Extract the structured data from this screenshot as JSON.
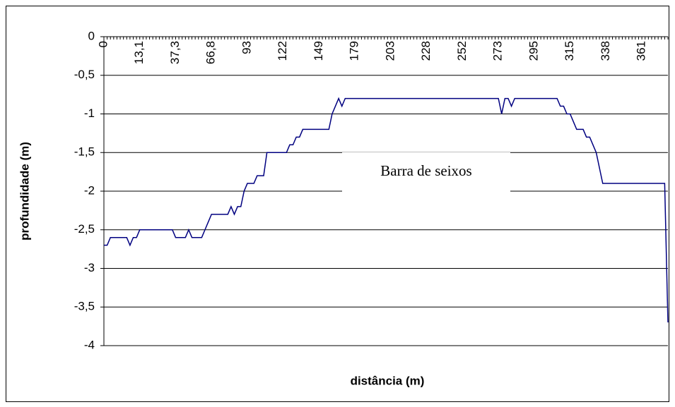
{
  "chart_data": {
    "type": "line",
    "x_label": "distância (m)",
    "y_label": "profundidade (m)",
    "annotations": [
      "Barra de seixos"
    ],
    "categories": [
      "0",
      null,
      null,
      null,
      null,
      null,
      null,
      null,
      null,
      null,
      null,
      "13,1",
      null,
      null,
      null,
      null,
      null,
      null,
      null,
      null,
      null,
      null,
      "37,3",
      null,
      null,
      null,
      null,
      null,
      null,
      null,
      null,
      null,
      null,
      "66,8",
      null,
      null,
      null,
      null,
      null,
      null,
      null,
      null,
      null,
      null,
      "93",
      null,
      null,
      null,
      null,
      null,
      null,
      null,
      null,
      null,
      null,
      "122",
      null,
      null,
      null,
      null,
      null,
      null,
      null,
      null,
      null,
      null,
      "149",
      null,
      null,
      null,
      null,
      null,
      null,
      null,
      null,
      null,
      null,
      "179",
      null,
      null,
      null,
      null,
      null,
      null,
      null,
      null,
      null,
      null,
      "203",
      null,
      null,
      null,
      null,
      null,
      null,
      null,
      null,
      null,
      null,
      "228",
      null,
      null,
      null,
      null,
      null,
      null,
      null,
      null,
      null,
      null,
      "252",
      null,
      null,
      null,
      null,
      null,
      null,
      null,
      null,
      null,
      null,
      "273",
      null,
      null,
      null,
      null,
      null,
      null,
      null,
      null,
      null,
      null,
      "295",
      null,
      null,
      null,
      null,
      null,
      null,
      null,
      null,
      null,
      null,
      "315",
      null,
      null,
      null,
      null,
      null,
      null,
      null,
      null,
      null,
      null,
      "338",
      null,
      null,
      null,
      null,
      null,
      null,
      null,
      null,
      null,
      null,
      "361",
      null,
      null,
      null,
      null,
      null,
      null,
      null,
      null
    ],
    "values": [
      -2.7,
      -2.7,
      -2.6,
      -2.6,
      -2.6,
      -2.6,
      -2.6,
      -2.6,
      -2.7,
      -2.6,
      -2.6,
      -2.5,
      -2.5,
      -2.5,
      -2.5,
      -2.5,
      -2.5,
      -2.5,
      -2.5,
      -2.5,
      -2.5,
      -2.5,
      -2.6,
      -2.6,
      -2.6,
      -2.6,
      -2.5,
      -2.6,
      -2.6,
      -2.6,
      -2.6,
      -2.5,
      -2.4,
      -2.3,
      -2.3,
      -2.3,
      -2.3,
      -2.3,
      -2.3,
      -2.2,
      -2.3,
      -2.2,
      -2.2,
      -2.0,
      -1.9,
      -1.9,
      -1.9,
      -1.8,
      -1.8,
      -1.8,
      -1.5,
      -1.5,
      -1.5,
      -1.5,
      -1.5,
      -1.5,
      -1.5,
      -1.4,
      -1.4,
      -1.3,
      -1.3,
      -1.2,
      -1.2,
      -1.2,
      -1.2,
      -1.2,
      -1.2,
      -1.2,
      -1.2,
      -1.2,
      -1.0,
      -0.9,
      -0.8,
      -0.9,
      -0.8,
      -0.8,
      -0.8,
      -0.8,
      -0.8,
      -0.8,
      -0.8,
      -0.8,
      -0.8,
      -0.8,
      -0.8,
      -0.8,
      -0.8,
      -0.8,
      -0.8,
      -0.8,
      -0.8,
      -0.8,
      -0.8,
      -0.8,
      -0.8,
      -0.8,
      -0.8,
      -0.8,
      -0.8,
      -0.8,
      -0.8,
      -0.8,
      -0.8,
      -0.8,
      -0.8,
      -0.8,
      -0.8,
      -0.8,
      -0.8,
      -0.8,
      -0.8,
      -0.8,
      -0.8,
      -0.8,
      -0.8,
      -0.8,
      -0.8,
      -0.8,
      -0.8,
      -0.8,
      -0.8,
      -0.8,
      -1.0,
      -0.8,
      -0.8,
      -0.9,
      -0.8,
      -0.8,
      -0.8,
      -0.8,
      -0.8,
      -0.8,
      -0.8,
      -0.8,
      -0.8,
      -0.8,
      -0.8,
      -0.8,
      -0.8,
      -0.8,
      -0.9,
      -0.9,
      -1.0,
      -1.0,
      -1.1,
      -1.2,
      -1.2,
      -1.2,
      -1.3,
      -1.3,
      -1.4,
      -1.5,
      -1.7,
      -1.9,
      -1.9,
      -1.9,
      -1.9,
      -1.9,
      -1.9,
      -1.9,
      -1.9,
      -1.9,
      -1.9,
      -1.9,
      -1.9,
      -1.9,
      -1.9,
      -1.9,
      -1.9,
      -1.9,
      -1.9,
      -1.9,
      -1.9,
      -3.7
    ],
    "color": "#000080",
    "ylim": [
      -4,
      0
    ],
    "yticks": [
      0,
      {
        "value": -0.5,
        "label": "-0,5"
      },
      -1,
      {
        "value": -1.5,
        "label": "-1,5"
      },
      -2,
      {
        "value": -2.5,
        "label": "-2,5"
      },
      -3,
      {
        "value": -3.5,
        "label": "-3,5"
      },
      -4
    ],
    "grid": true
  }
}
